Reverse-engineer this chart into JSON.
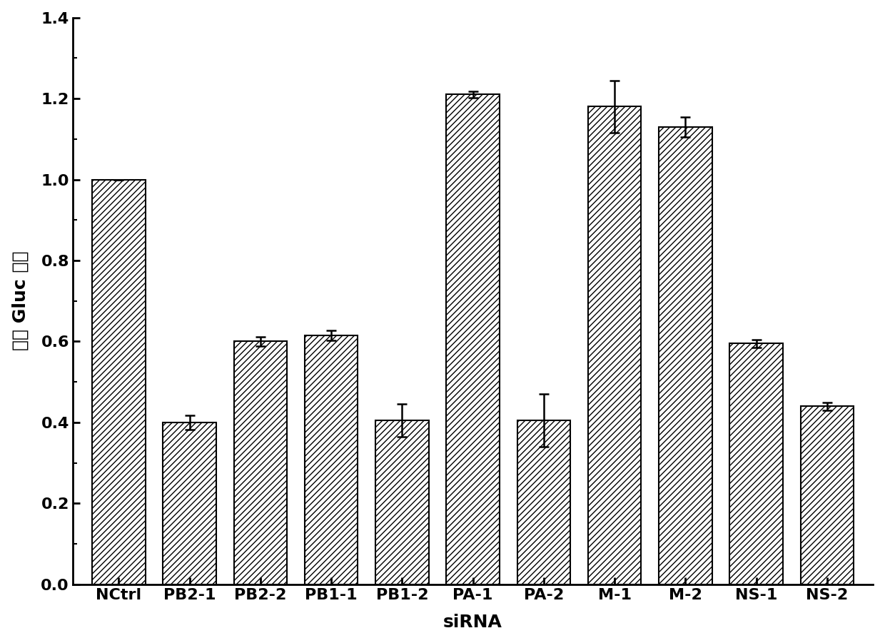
{
  "categories": [
    "NCtrl",
    "PB2-1",
    "PB2-2",
    "PB1-1",
    "PB1-2",
    "PA-1",
    "PA-2",
    "M-1",
    "M-2",
    "NS-1",
    "NS-2"
  ],
  "values": [
    1.0,
    0.4,
    0.6,
    0.615,
    0.405,
    1.21,
    0.405,
    1.18,
    1.13,
    0.595,
    0.44
  ],
  "errors": [
    0.0,
    0.018,
    0.012,
    0.012,
    0.04,
    0.008,
    0.065,
    0.065,
    0.025,
    0.01,
    0.01
  ],
  "ylabel_chinese": "相对 Gluc 活性",
  "xlabel": "siRNA",
  "ylim": [
    0,
    1.4
  ],
  "yticks": [
    0.0,
    0.2,
    0.4,
    0.6,
    0.8,
    1.0,
    1.2,
    1.4
  ],
  "bar_color": "#ffffff",
  "bar_edgecolor": "#000000",
  "hatch": "////",
  "background_color": "#ffffff",
  "bar_width": 0.75,
  "figsize": [
    12.4,
    9.01
  ],
  "dpi": 100,
  "label_fontsize": 18,
  "tick_fontsize": 16
}
